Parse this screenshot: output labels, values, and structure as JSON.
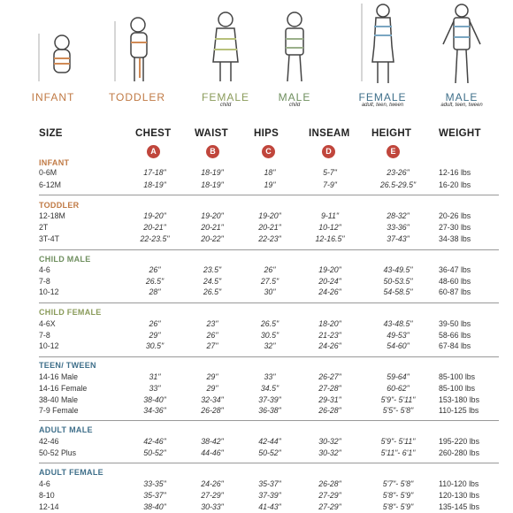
{
  "figures": [
    {
      "label": "INFANT",
      "sub": "",
      "color": "#c07a45"
    },
    {
      "label": "TODDLER",
      "sub": "",
      "color": "#c07a45"
    },
    {
      "label": "FEMALE",
      "sub": "child",
      "color": "#8a9b5a"
    },
    {
      "label": "MALE",
      "sub": "child",
      "color": "#6f8f5f"
    },
    {
      "label": "FEMALE",
      "sub": "adult, teen, tween",
      "color": "#3f6f8a"
    },
    {
      "label": "MALE",
      "sub": "adult, teen, tween",
      "color": "#3f6f8a"
    }
  ],
  "columns": [
    "SIZE",
    "CHEST",
    "WAISt",
    "HIPS",
    "INSEAM",
    "HEIGHT",
    "WEIGHT"
  ],
  "header_labels": {
    "size": "SIZE",
    "chest": "CHEST",
    "waist": "WAIST",
    "hips": "HIPS",
    "inseam": "INSEAM",
    "height": "HEIGHT",
    "weight": "WEIGHT"
  },
  "badges": [
    "A",
    "B",
    "C",
    "D",
    "E"
  ],
  "badge_color": "#c0463c",
  "groups": [
    {
      "title": "INFANT",
      "color": "#c07a45",
      "rows": [
        [
          "0-6M",
          "17-18\"",
          "18-19\"",
          "18\"",
          "5-7\"",
          "23-26\"",
          "12-16 lbs"
        ],
        [
          "6-12M",
          "18-19\"",
          "18-19\"",
          "19\"",
          "7-9\"",
          "26.5-29.5\"",
          "16-20 lbs"
        ]
      ]
    },
    {
      "title": "TODDLER",
      "color": "#c07a45",
      "rows": [
        [
          "12-18M",
          "19-20\"",
          "19-20\"",
          "19-20\"",
          "9-11\"",
          "28-32\"",
          "20-26 lbs"
        ],
        [
          "2T",
          "20-21\"",
          "20-21\"",
          "20-21\"",
          "10-12\"",
          "33-36\"",
          "27-30 lbs"
        ],
        [
          "3T-4T",
          "22-23.5\"",
          "20-22\"",
          "22-23\"",
          "12-16.5\"",
          "37-43\"",
          "34-38 lbs"
        ]
      ]
    },
    {
      "title": "CHILD MALE",
      "color": "#6f8f5f",
      "rows": [
        [
          "4-6",
          "26\"",
          "23.5\"",
          "26\"",
          "19-20\"",
          "43-49.5\"",
          "36-47 lbs"
        ],
        [
          "7-8",
          "26.5\"",
          "24.5\"",
          "27.5\"",
          "20-24\"",
          "50-53.5\"",
          "48-60 lbs"
        ],
        [
          "10-12",
          "28\"",
          "26.5\"",
          "30\"",
          "24-26\"",
          "54-58.5\"",
          "60-87 lbs"
        ]
      ]
    },
    {
      "title": "CHILD FEMALE",
      "color": "#8a9b5a",
      "rows": [
        [
          "4-6X",
          "26\"",
          "23\"",
          "26.5\"",
          "18-20\"",
          "43-48.5\"",
          "39-50 lbs"
        ],
        [
          "7-8",
          "29\"",
          "26\"",
          "30.5\"",
          "21-23\"",
          "49-53\"",
          "58-66 lbs"
        ],
        [
          "10-12",
          "30.5\"",
          "27\"",
          "32\"",
          "24-26\"",
          "54-60\"",
          "67-84 lbs"
        ]
      ]
    },
    {
      "title": "TEEN/ TWEEN",
      "color": "#3f6f8a",
      "rows": [
        [
          "14-16 Male",
          "31\"",
          "29\"",
          "33\"",
          "26-27\"",
          "59-64\"",
          "85-100 lbs"
        ],
        [
          "14-16 Female",
          "33\"",
          "29\"",
          "34.5\"",
          "27-28\"",
          "60-62\"",
          "85-100 lbs"
        ],
        [
          "38-40 Male",
          "38-40\"",
          "32-34\"",
          "37-39\"",
          "29-31\"",
          "5'9\"- 5'11\"",
          "153-180 lbs"
        ],
        [
          "7-9 Female",
          "34-36\"",
          "26-28\"",
          "36-38\"",
          "26-28\"",
          "5'5\"- 5'8\"",
          "110-125 lbs"
        ]
      ]
    },
    {
      "title": "ADULT MALE",
      "color": "#3f6f8a",
      "rows": [
        [
          "42-46",
          "42-46\"",
          "38-42\"",
          "42-44\"",
          "30-32\"",
          "5'9\"- 5'11\"",
          "195-220 lbs"
        ],
        [
          "50-52 Plus",
          "50-52\"",
          "44-46\"",
          "50-52\"",
          "30-32\"",
          "5'11\"- 6'1\"",
          "260-280 lbs"
        ]
      ]
    },
    {
      "title": "ADULT FEMALE",
      "color": "#3f6f8a",
      "rows": [
        [
          "4-6",
          "33-35\"",
          "24-26\"",
          "35-37\"",
          "26-28\"",
          "5'7\"- 5'8\"",
          "110-120 lbs"
        ],
        [
          "8-10",
          "35-37\"",
          "27-29\"",
          "37-39\"",
          "27-29\"",
          "5'8\"- 5'9\"",
          "120-130 lbs"
        ],
        [
          "12-14",
          "38-40\"",
          "30-33\"",
          "41-43\"",
          "27-29\"",
          "5'8\"- 5'9\"",
          "135-145 lbs"
        ]
      ]
    }
  ]
}
